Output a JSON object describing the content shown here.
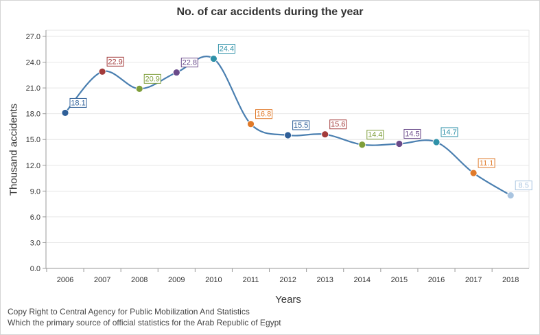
{
  "chart_data": {
    "type": "line",
    "title": "No. of car accidents during the year",
    "xlabel": "Years",
    "ylabel": "Thousand accidents",
    "categories": [
      "2006",
      "2007",
      "2008",
      "2009",
      "2010",
      "2011",
      "2012",
      "2013",
      "2014",
      "2015",
      "2016",
      "2017",
      "2018"
    ],
    "series": [
      {
        "values": [
          18.1,
          22.9,
          20.9,
          22.8,
          24.4,
          16.8,
          15.5,
          15.6,
          14.4,
          14.5,
          14.7,
          11.1,
          8.5
        ],
        "line_color": "#4a7fb0",
        "point_colors": [
          "#2f5f98",
          "#a33b3b",
          "#7e9e3a",
          "#6a4a8a",
          "#2f91a8",
          "#e07a2a",
          "#2f5f98",
          "#a33b3b",
          "#7e9e3a",
          "#6a4a8a",
          "#2f91a8",
          "#e07a2a",
          "#a9c4e0"
        ]
      }
    ],
    "y_ticks": [
      "0.0",
      "3.0",
      "6.0",
      "9.0",
      "12.0",
      "15.0",
      "18.0",
      "21.0",
      "24.0",
      "27.0"
    ],
    "ylim": [
      0,
      27
    ],
    "grid": true,
    "smooth": true,
    "data_labels": true,
    "legend": "none"
  },
  "footer": {
    "line1": "Copy Right to Central Agency for Public Mobilization And Statistics",
    "line2": "Which the primary source of official statistics for the Arab Republic of Egypt"
  }
}
